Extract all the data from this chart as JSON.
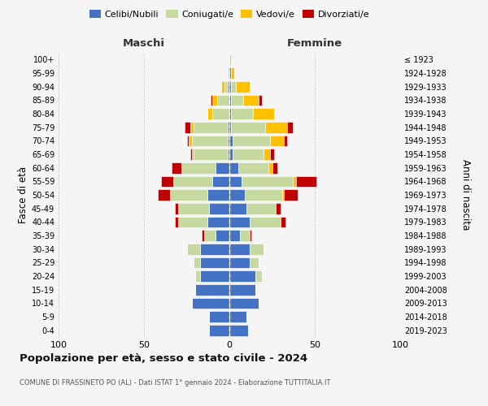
{
  "age_groups_bottom_to_top": [
    "0-4",
    "5-9",
    "10-14",
    "15-19",
    "20-24",
    "25-29",
    "30-34",
    "35-39",
    "40-44",
    "45-49",
    "50-54",
    "55-59",
    "60-64",
    "65-69",
    "70-74",
    "75-79",
    "80-84",
    "85-89",
    "90-94",
    "95-99",
    "100+"
  ],
  "birth_years_bottom_to_top": [
    "2019-2023",
    "2014-2018",
    "2009-2013",
    "2004-2008",
    "1999-2003",
    "1994-1998",
    "1989-1993",
    "1984-1988",
    "1979-1983",
    "1974-1978",
    "1969-1973",
    "1964-1968",
    "1959-1963",
    "1954-1958",
    "1949-1953",
    "1944-1948",
    "1939-1943",
    "1934-1938",
    "1929-1933",
    "1924-1928",
    "≤ 1923"
  ],
  "colors": {
    "celibi": "#4472c4",
    "coniugati": "#c5d9a0",
    "vedovi": "#ffc000",
    "divorziati": "#c00000"
  },
  "males": {
    "celibi": [
      12,
      12,
      22,
      20,
      17,
      17,
      17,
      8,
      13,
      12,
      13,
      10,
      8,
      1,
      1,
      1,
      0,
      0,
      1,
      0,
      0
    ],
    "coniugati": [
      0,
      0,
      0,
      0,
      3,
      4,
      8,
      7,
      17,
      18,
      22,
      23,
      20,
      20,
      21,
      20,
      10,
      7,
      2,
      1,
      0
    ],
    "vedovi": [
      0,
      0,
      0,
      0,
      0,
      0,
      0,
      0,
      0,
      0,
      0,
      0,
      0,
      1,
      2,
      2,
      3,
      3,
      2,
      0,
      0
    ],
    "divorziati": [
      0,
      0,
      0,
      0,
      0,
      0,
      0,
      1,
      2,
      2,
      7,
      7,
      6,
      1,
      1,
      3,
      0,
      1,
      0,
      0,
      0
    ]
  },
  "females": {
    "celibi": [
      11,
      10,
      17,
      15,
      15,
      12,
      12,
      6,
      12,
      10,
      9,
      7,
      5,
      2,
      2,
      1,
      1,
      1,
      1,
      1,
      0
    ],
    "coniugati": [
      0,
      0,
      0,
      0,
      4,
      5,
      8,
      6,
      18,
      17,
      22,
      30,
      18,
      18,
      22,
      20,
      13,
      7,
      3,
      0,
      0
    ],
    "vedovi": [
      0,
      0,
      0,
      0,
      0,
      0,
      0,
      0,
      0,
      0,
      1,
      2,
      2,
      4,
      8,
      13,
      12,
      9,
      8,
      2,
      1
    ],
    "divorziati": [
      0,
      0,
      0,
      0,
      0,
      0,
      0,
      1,
      3,
      3,
      8,
      12,
      3,
      2,
      2,
      3,
      0,
      2,
      0,
      0,
      0
    ]
  },
  "title": "Popolazione per età, sesso e stato civile - 2024",
  "subtitle": "COMUNE DI FRASSINETO PO (AL) - Dati ISTAT 1° gennaio 2024 - Elaborazione TUTTITALIA.IT",
  "xlabel_left": "Maschi",
  "xlabel_right": "Femmine",
  "ylabel_left": "Fasce di età",
  "ylabel_right": "Anni di nascita",
  "xlim": 100,
  "legend_labels": [
    "Celibi/Nubili",
    "Coniugati/e",
    "Vedovi/e",
    "Divorziati/e"
  ],
  "bg_color": "#f5f5f5",
  "grid_color": "#cccccc"
}
